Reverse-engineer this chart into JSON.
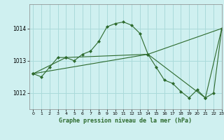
{
  "title": "Graphe pression niveau de la mer (hPa)",
  "background_color": "#cff0f0",
  "grid_color": "#aadada",
  "line_color": "#2d6a2d",
  "xlim": [
    -0.5,
    23
  ],
  "ylim": [
    1011.5,
    1014.75
  ],
  "yticks": [
    1012,
    1013,
    1014
  ],
  "xticks": [
    0,
    1,
    2,
    3,
    4,
    5,
    6,
    7,
    8,
    9,
    10,
    11,
    12,
    13,
    14,
    15,
    16,
    17,
    18,
    19,
    20,
    21,
    22,
    23
  ],
  "series": [
    {
      "x": [
        0,
        1,
        2,
        3,
        4,
        5,
        6,
        7,
        8,
        9,
        10,
        11,
        12,
        13,
        14,
        15,
        16,
        17,
        18,
        19,
        20,
        21,
        22,
        23
      ],
      "y": [
        1012.6,
        1012.5,
        1012.8,
        1013.1,
        1013.1,
        1013.0,
        1013.2,
        1013.3,
        1013.6,
        1014.05,
        1014.15,
        1014.2,
        1014.1,
        1013.85,
        1013.2,
        1012.8,
        1012.4,
        1012.3,
        1012.05,
        1011.85,
        1012.1,
        1011.85,
        1012.0,
        1014.0
      ]
    },
    {
      "x": [
        0,
        4,
        14,
        23
      ],
      "y": [
        1012.6,
        1013.1,
        1013.2,
        1014.0
      ]
    },
    {
      "x": [
        0,
        14,
        21,
        23
      ],
      "y": [
        1012.6,
        1013.2,
        1011.85,
        1014.0
      ]
    }
  ]
}
